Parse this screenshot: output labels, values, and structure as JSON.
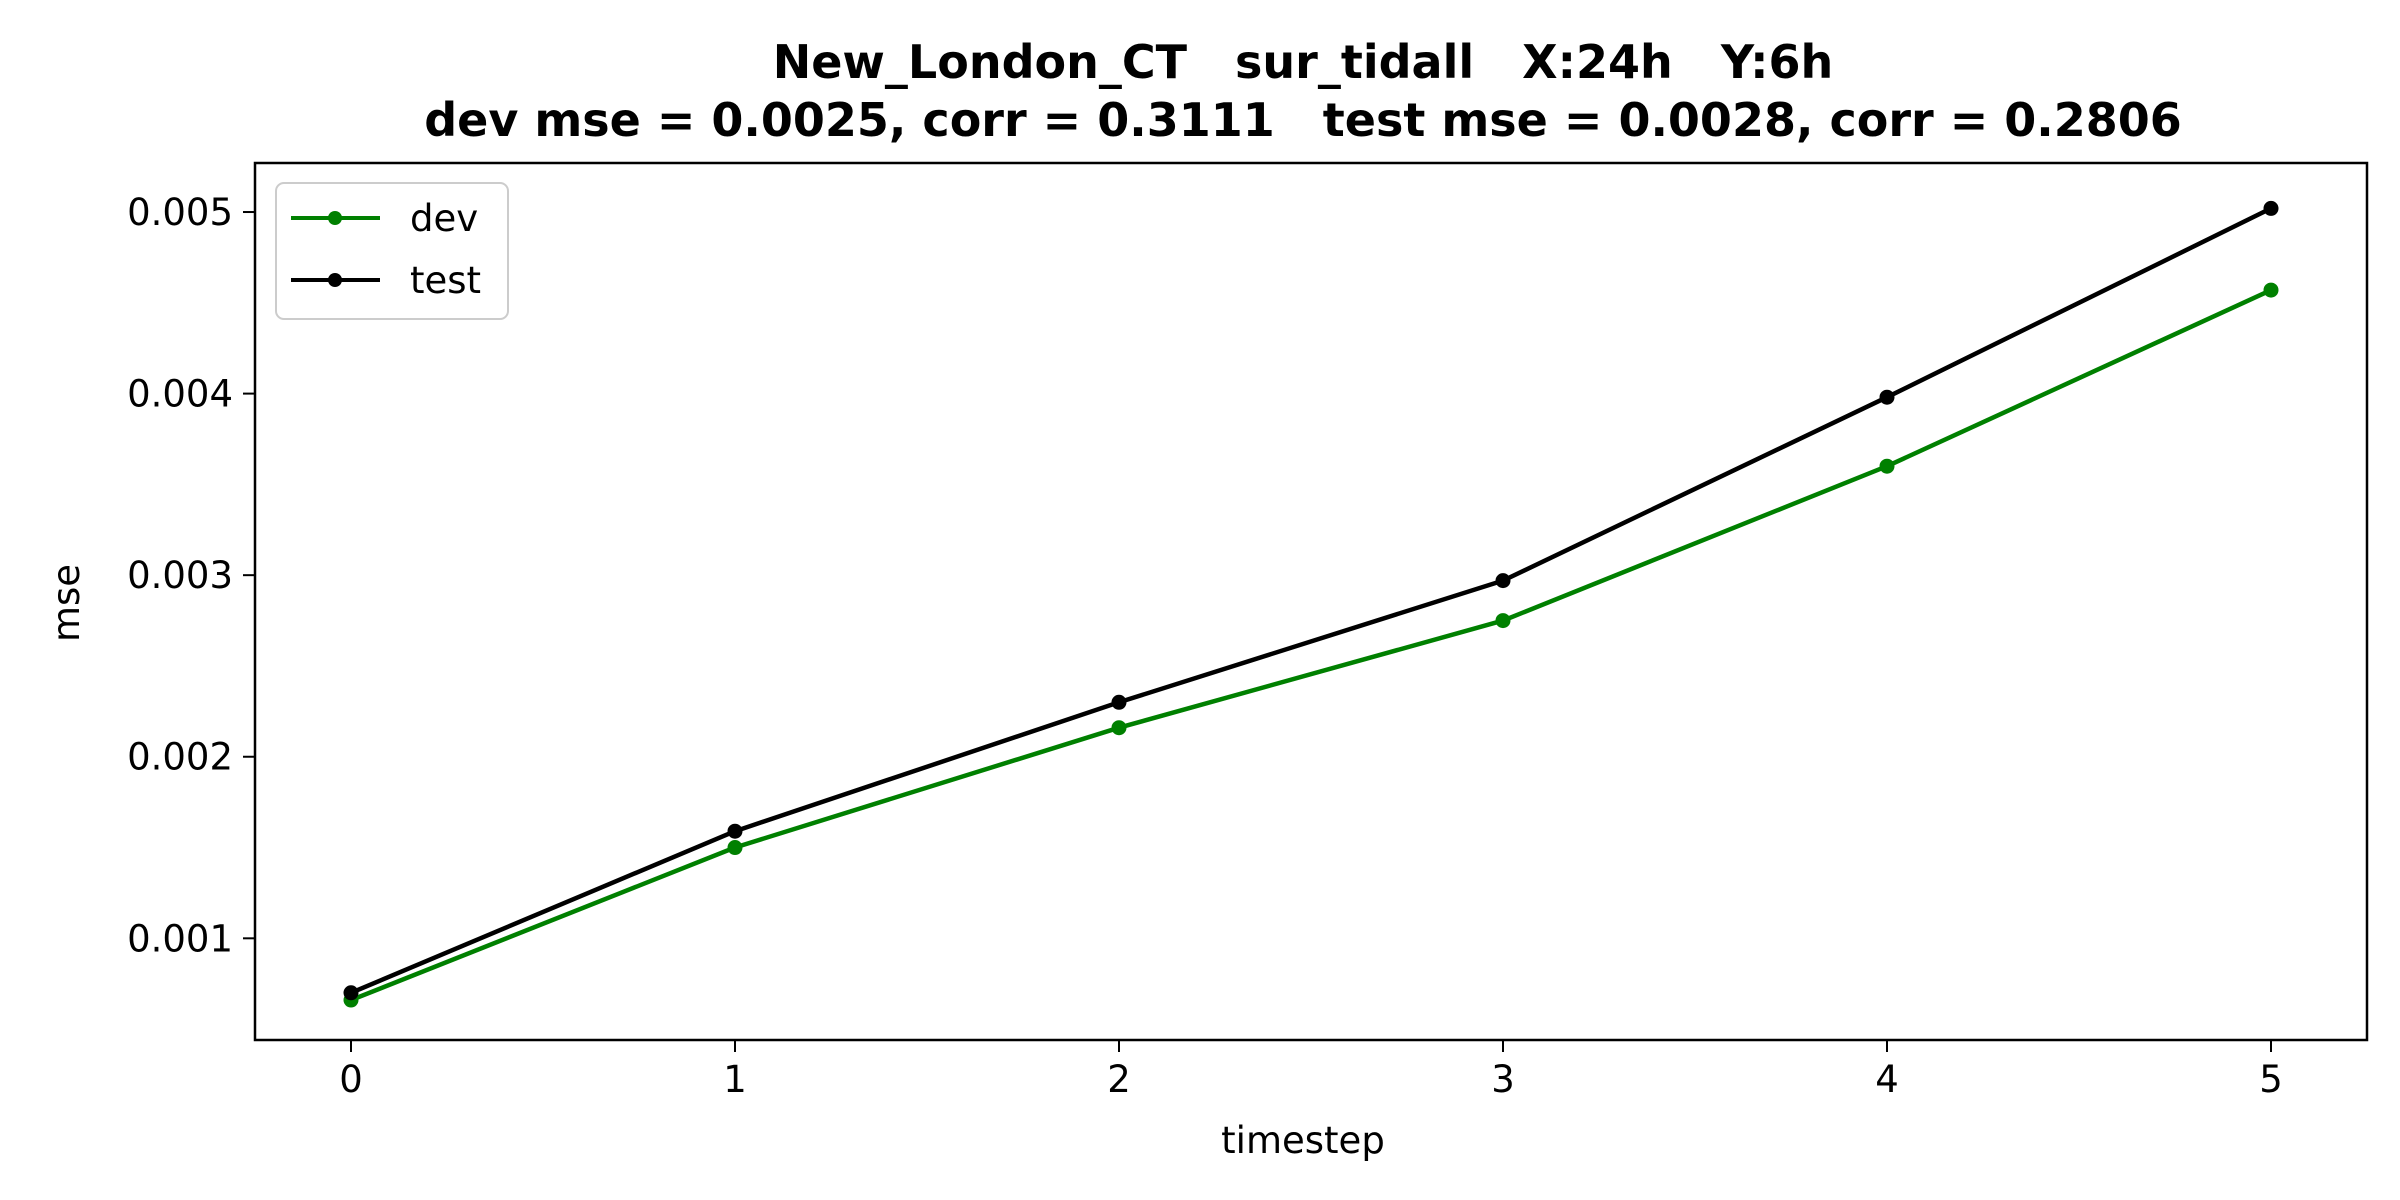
{
  "chart_data": {
    "type": "line",
    "title_line1": "New_London_CT   sur_tidall   X:24h   Y:6h",
    "title_line2": "dev mse = 0.0025, corr = 0.3111   test mse = 0.0028, corr = 0.2806",
    "xlabel": "timestep",
    "ylabel": "mse",
    "x": [
      0,
      1,
      2,
      3,
      4,
      5
    ],
    "xlim": [
      -0.25,
      5.25
    ],
    "ylim": [
      0.00044,
      0.00527
    ],
    "xticks": [
      0,
      1,
      2,
      3,
      4,
      5
    ],
    "xtick_labels": [
      "0",
      "1",
      "2",
      "3",
      "4",
      "5"
    ],
    "yticks": [
      0.001,
      0.002,
      0.003,
      0.004,
      0.005
    ],
    "ytick_labels": [
      "0.001",
      "0.002",
      "0.003",
      "0.004",
      "0.005"
    ],
    "grid": false,
    "legend_position": "top-left",
    "series": [
      {
        "name": "dev",
        "color": "#008000",
        "values": [
          0.00066,
          0.0015,
          0.00216,
          0.00275,
          0.0036,
          0.00457
        ]
      },
      {
        "name": "test",
        "color": "#000000",
        "values": [
          0.0007,
          0.00159,
          0.0023,
          0.00297,
          0.00398,
          0.00502
        ]
      }
    ]
  }
}
